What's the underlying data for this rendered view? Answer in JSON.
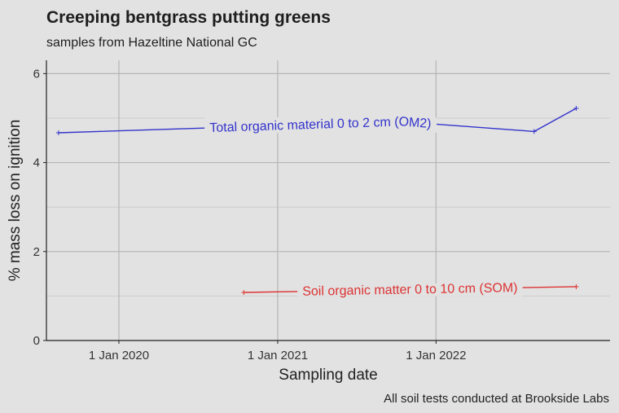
{
  "chart_data": {
    "type": "line",
    "title": "Creeping bentgrass putting greens",
    "subtitle": "samples from Hazeltine National GC",
    "xlabel": "Sampling date",
    "ylabel": "% mass loss on ignition",
    "caption": "All soil tests conducted at Brookside Labs",
    "xlim": [
      "2019-07-18",
      "2023-02-06"
    ],
    "ylim": [
      0,
      6.3
    ],
    "x_ticks": [
      {
        "value": "2020-01-01",
        "label": "1 Jan 2020"
      },
      {
        "value": "2021-01-01",
        "label": "1 Jan 2021"
      },
      {
        "value": "2022-01-01",
        "label": "1 Jan 2022"
      }
    ],
    "y_ticks": [
      0,
      2,
      4,
      6
    ],
    "y_minor": [
      1,
      3,
      5
    ],
    "grid": true,
    "series": [
      {
        "name": "Total organic material 0 to 2 cm (OM2)",
        "color": "#3333cc",
        "points": [
          {
            "x": "2019-08-15",
            "y": 4.67
          },
          {
            "x": "2021-10-15",
            "y": 4.92
          },
          {
            "x": "2022-08-15",
            "y": 4.7
          },
          {
            "x": "2022-11-20",
            "y": 5.22
          }
        ]
      },
      {
        "name": "Soil organic matter 0 to 10 cm (SOM)",
        "color": "#dd3333",
        "points": [
          {
            "x": "2020-10-15",
            "y": 1.08
          },
          {
            "x": "2022-11-20",
            "y": 1.21
          }
        ]
      }
    ]
  }
}
